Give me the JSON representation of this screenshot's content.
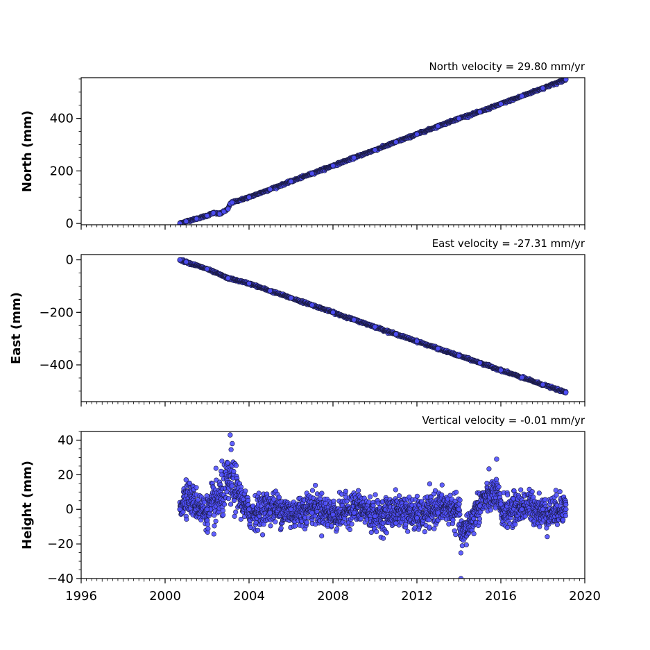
{
  "colors": {
    "marker_fill": "#5050ff",
    "marker_edge": "#1a1a40"
  },
  "chart_data": [
    {
      "type": "scatter",
      "title": "North velocity = 29.80 mm/yr",
      "xlabel": "",
      "ylabel": "North (mm)",
      "xlim": [
        1996,
        2020
      ],
      "ylim": [
        -5,
        555
      ],
      "yticks": [
        0,
        200,
        400
      ],
      "x_start": 2000.7,
      "x_end": 2019.1,
      "series": [
        {
          "x": [
            2000.7,
            2001.0,
            2001.5,
            2002.0,
            2002.3,
            2002.6,
            2002.8,
            2003.0,
            2003.1,
            2003.2,
            2004.0,
            2005.0,
            2006.0,
            2007.0,
            2008.0,
            2009.0,
            2010.0,
            2011.0,
            2012.0,
            2013.0,
            2014.0,
            2015.0,
            2016.0,
            2017.0,
            2018.0,
            2019.1
          ],
          "y": [
            0,
            8,
            18,
            30,
            40,
            36,
            45,
            55,
            75,
            80,
            100,
            130,
            160,
            190,
            220,
            250,
            280,
            310,
            340,
            370,
            400,
            425,
            455,
            485,
            515,
            548
          ]
        }
      ]
    },
    {
      "type": "scatter",
      "title": "East velocity = -27.31 mm/yr",
      "xlabel": "",
      "ylabel": "East (mm)",
      "xlim": [
        1996,
        2020
      ],
      "ylim": [
        -540,
        20
      ],
      "yticks": [
        0,
        -200,
        -400
      ],
      "x_start": 2000.7,
      "x_end": 2019.1,
      "series": [
        {
          "x": [
            2000.7,
            2001.0,
            2002.0,
            2003.0,
            2004.0,
            2005.0,
            2006.0,
            2007.0,
            2008.0,
            2009.0,
            2010.0,
            2011.0,
            2012.0,
            2013.0,
            2014.0,
            2015.0,
            2016.0,
            2017.0,
            2018.0,
            2019.1
          ],
          "y": [
            0,
            -8,
            -35,
            -70,
            -90,
            -118,
            -145,
            -172,
            -200,
            -228,
            -255,
            -283,
            -310,
            -338,
            -365,
            -392,
            -420,
            -448,
            -475,
            -505
          ]
        }
      ]
    },
    {
      "type": "scatter",
      "title": "Vertical velocity = -0.01 mm/yr",
      "xlabel": "",
      "ylabel": "Height (mm)",
      "xlim": [
        1996,
        2020
      ],
      "ylim": [
        -40,
        45
      ],
      "yticks": [
        -40,
        -20,
        0,
        20,
        40
      ],
      "xticks": [
        1996,
        2000,
        2004,
        2008,
        2012,
        2016,
        2020
      ],
      "x_start": 2000.7,
      "x_end": 2019.1,
      "series": [
        {
          "x": [
            2000.7,
            2001.0,
            2002.0,
            2002.7,
            2003.1,
            2003.2,
            2004.0,
            2005.0,
            2006.0,
            2007.0,
            2008.0,
            2009.0,
            2010.0,
            2011.0,
            2012.0,
            2013.0,
            2014.0,
            2014.1,
            2015.0,
            2015.8,
            2016.0,
            2017.0,
            2018.0,
            2019.1
          ],
          "y": [
            0,
            17,
            0,
            20,
            43,
            38,
            0,
            -2,
            0,
            -2,
            -3,
            -2,
            -4,
            -8,
            -5,
            -2,
            0,
            -40,
            2,
            29,
            3,
            0,
            0,
            0
          ]
        }
      ]
    }
  ]
}
